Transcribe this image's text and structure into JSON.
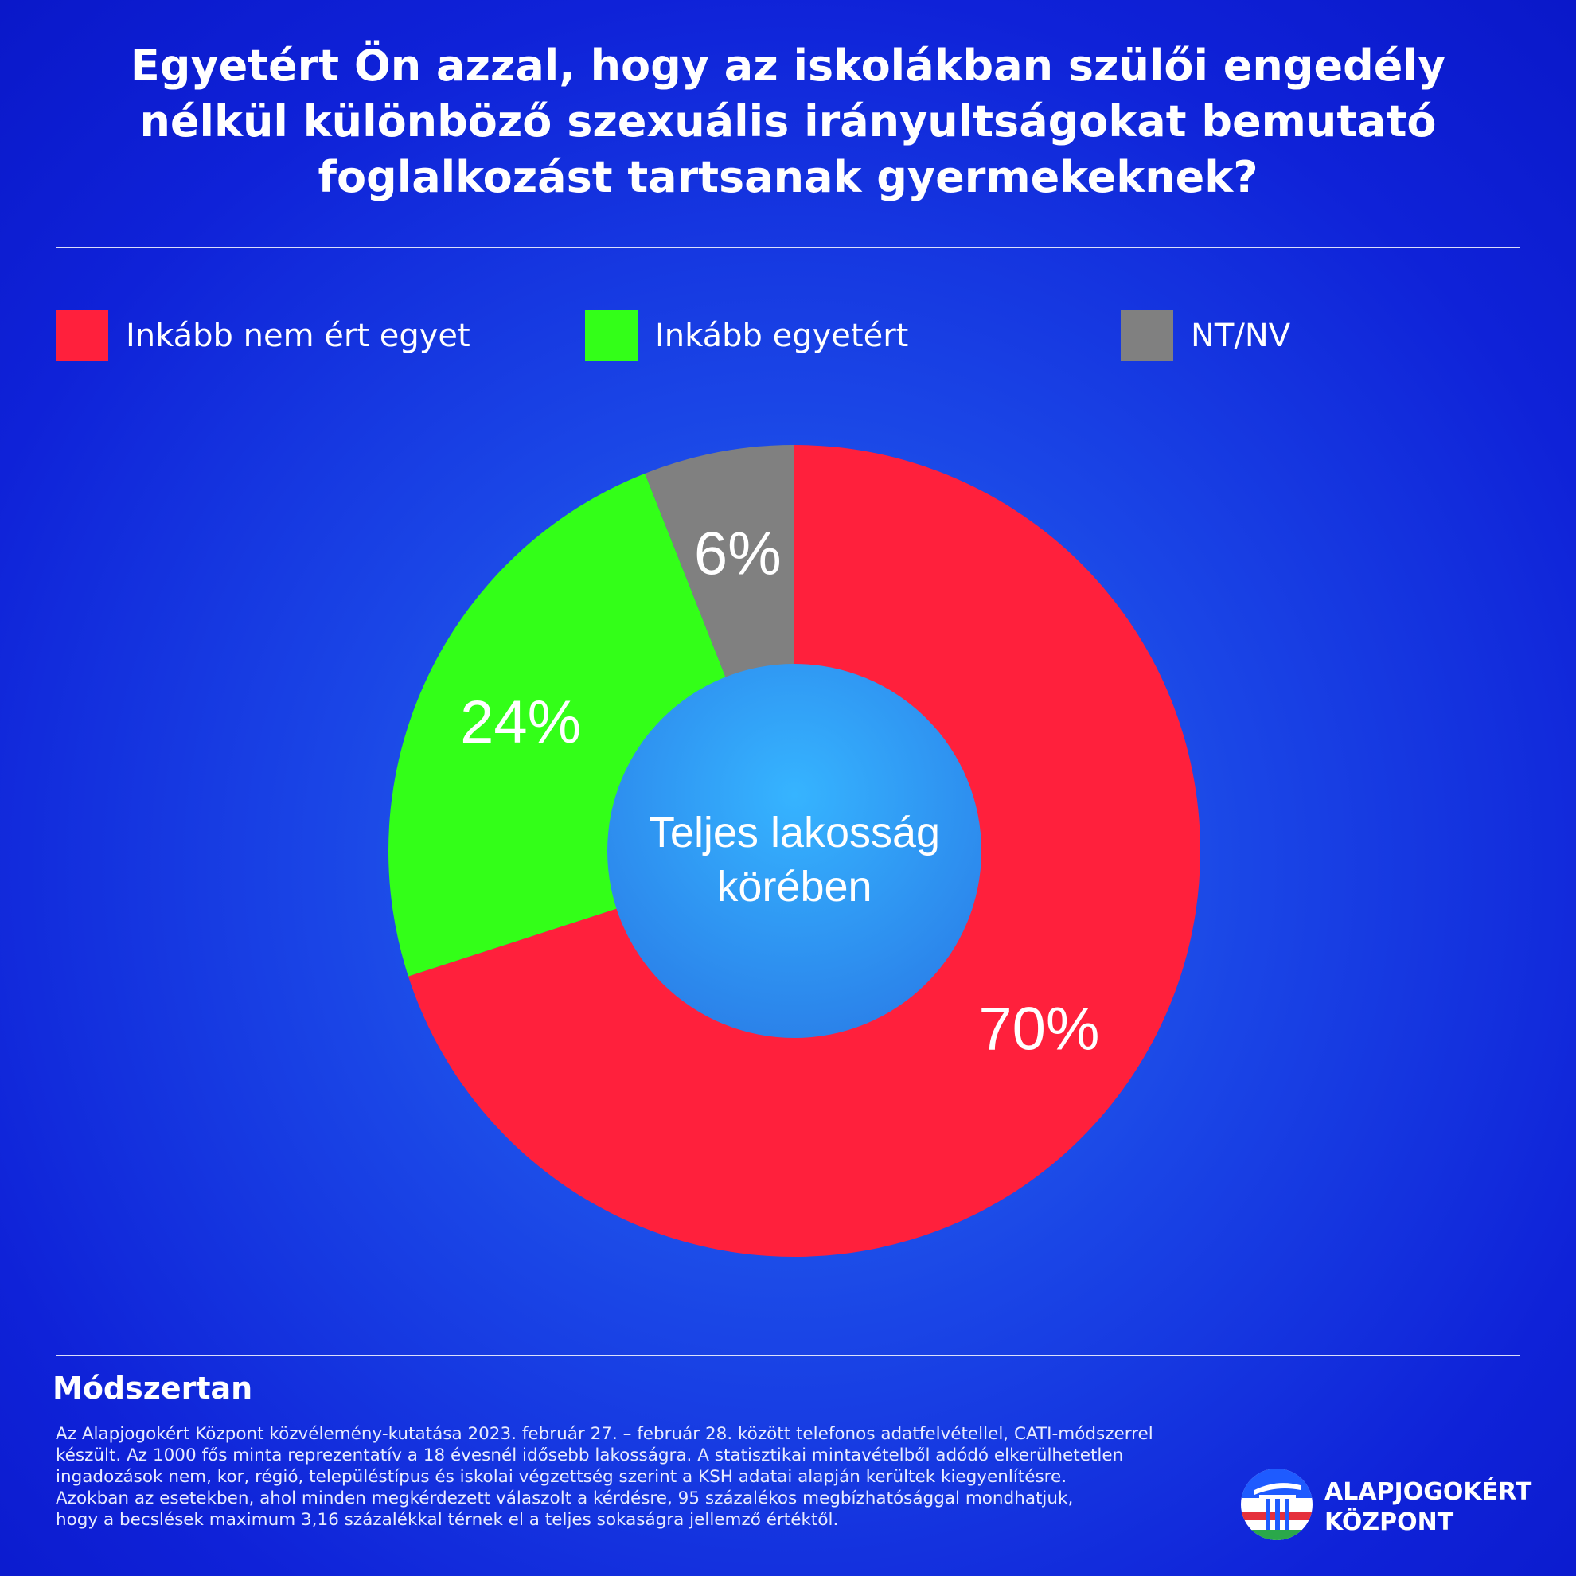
{
  "title_lines": [
    "Egyetért Ön azzal, hogy az iskolákban szülői engedély",
    "nélkül különböző szexuális irányultságokat bemutató",
    "foglalkozást tartsanak gyermekeknek?"
  ],
  "legend": [
    {
      "label": "Inkább nem ért egyet",
      "color": "#ff203c"
    },
    {
      "label": "Inkább egyetért",
      "color": "#33ff18"
    },
    {
      "label": "NT/NV",
      "color": "#808080"
    }
  ],
  "chart_data": {
    "type": "pie",
    "variant": "donut",
    "title": "Egyetért Ön azzal, hogy az iskolákban szülői engedély nélkül különböző szexuális irányultságokat bemutató foglalkozást tartsanak gyermekeknek?",
    "center_label": [
      "Teljes lakosság",
      "körében"
    ],
    "legend_position": "top",
    "slices": [
      {
        "name": "Inkább nem ért egyet",
        "value": 70,
        "label": "70%",
        "color": "#ff203c"
      },
      {
        "name": "Inkább egyetért",
        "value": 24,
        "label": "24%",
        "color": "#33ff18"
      },
      {
        "name": "NT/NV",
        "value": 6,
        "label": "6%",
        "color": "#808080"
      }
    ]
  },
  "methodology": {
    "heading": "Módszertan",
    "lines": [
      "Az Alapjogokért Központ közvélemény-kutatása 2023. február 27. – február 28. között telefonos adatfelvétellel, CATI-módszerrel",
      "készült. Az 1000 fős minta reprezentatív a 18 évesnél idősebb lakosságra. A statisztikai mintavételből adódó elkerülhetetlen",
      "ingadozások nem, kor, régió, településtípus és iskolai végzettség szerint a KSH adatai alapján kerültek kiegyenlítésre.",
      "Azokban az esetekben, ahol minden megkérdezett válaszolt a kérdésre, 95 százalékos megbízhatósággal mondhatjuk,",
      "hogy a becslések maximum 3,16 százalékkal térnek el a teljes sokaságra jellemző értéktől."
    ]
  },
  "logo": {
    "line1": "ALAPJOGOKÉRT",
    "line2": "KÖZPONT",
    "icon": "column-logo-icon"
  }
}
